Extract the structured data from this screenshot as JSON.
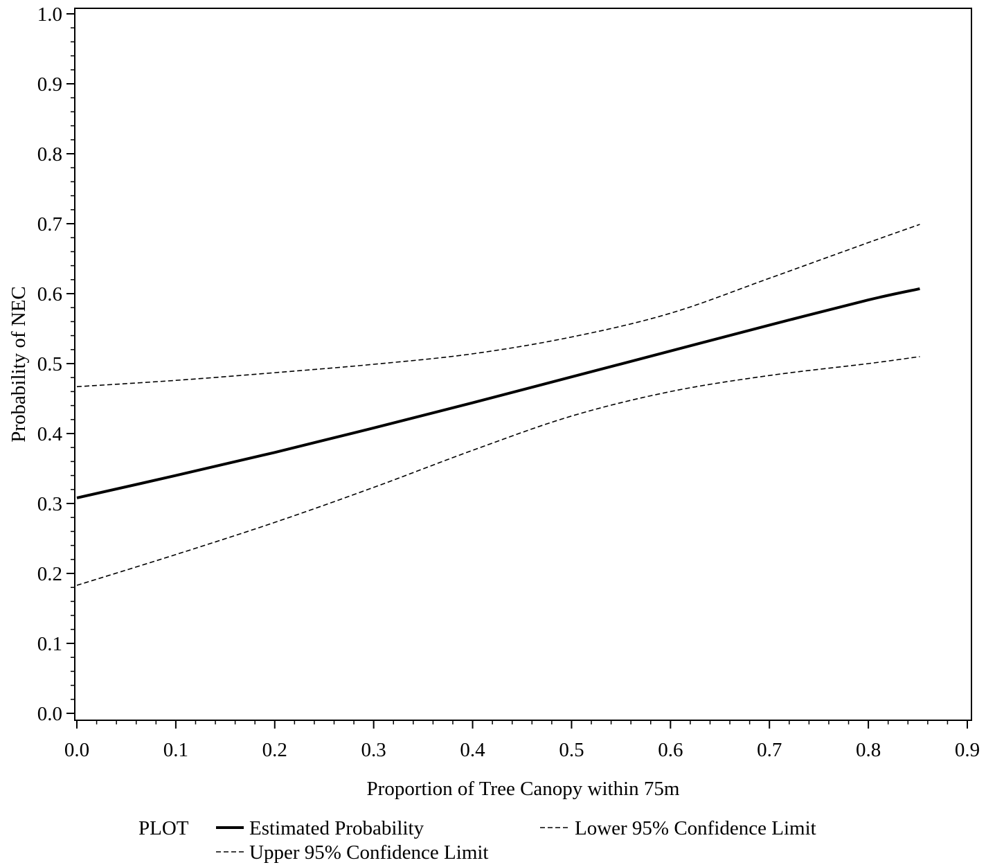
{
  "chart_data": {
    "type": "line",
    "xlabel": "Proportion of Tree Canopy within 75m",
    "ylabel": "Probability of NEC",
    "xlim": [
      0.0,
      0.9
    ],
    "ylim": [
      0.0,
      1.0
    ],
    "x_ticks": [
      "0.0",
      "0.1",
      "0.2",
      "0.3",
      "0.4",
      "0.5",
      "0.6",
      "0.7",
      "0.8",
      "0.9"
    ],
    "y_ticks": [
      "0.0",
      "0.1",
      "0.2",
      "0.3",
      "0.4",
      "0.5",
      "0.6",
      "0.7",
      "0.8",
      "0.9",
      "1.0"
    ],
    "grid": false,
    "legend": {
      "title": "PLOT",
      "placement": "bottom"
    },
    "x": [
      0.0,
      0.1,
      0.2,
      0.3,
      0.4,
      0.5,
      0.6,
      0.7,
      0.8,
      0.852
    ],
    "series": [
      {
        "name": "Estimated Probability",
        "style": "solid",
        "values": [
          0.308,
          0.34,
          0.373,
          0.408,
          0.444,
          0.481,
          0.518,
          0.555,
          0.591,
          0.607
        ]
      },
      {
        "name": "Lower 95% Confidence Limit",
        "style": "dashed",
        "values": [
          0.183,
          0.227,
          0.273,
          0.323,
          0.376,
          0.425,
          0.46,
          0.483,
          0.5,
          0.51
        ]
      },
      {
        "name": "Upper 95% Confidence Limit",
        "style": "dashed",
        "values": [
          0.467,
          0.476,
          0.487,
          0.499,
          0.514,
          0.538,
          0.572,
          0.622,
          0.673,
          0.699
        ]
      }
    ]
  }
}
